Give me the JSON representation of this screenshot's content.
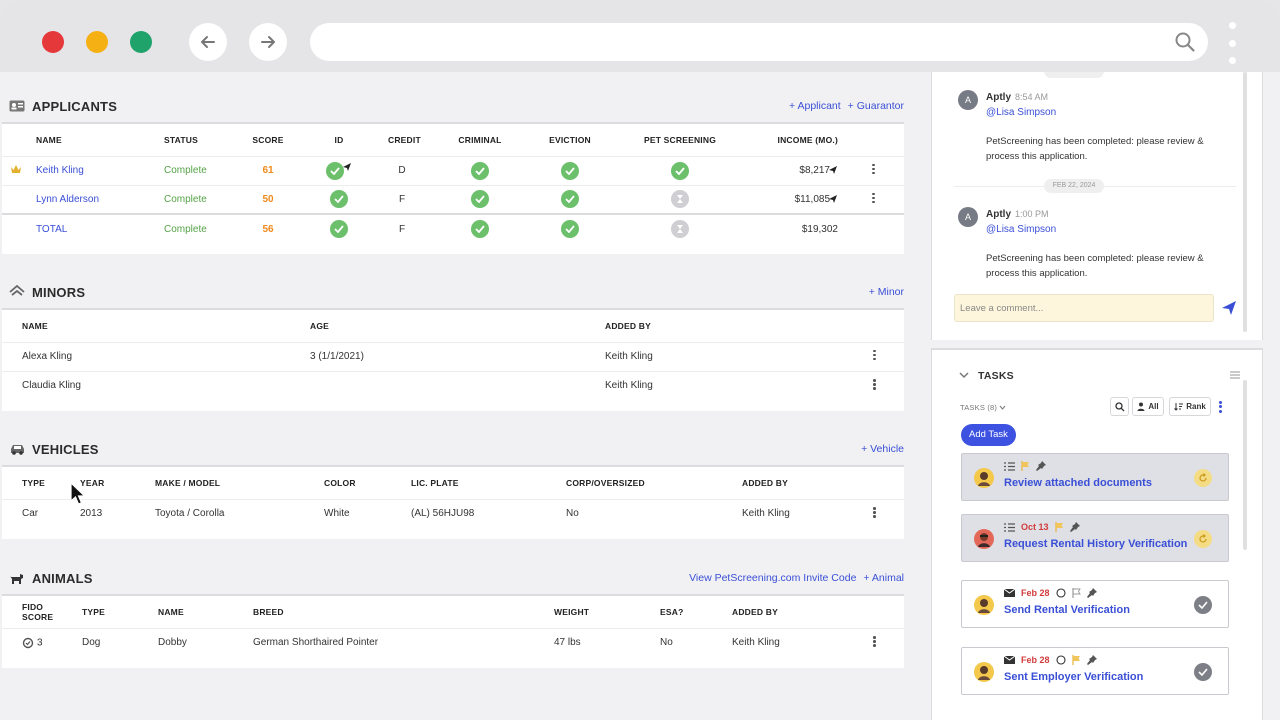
{
  "applicants": {
    "title": "APPLICANTS",
    "actions": [
      "+ Applicant",
      "+ Guarantor"
    ],
    "columns": [
      "NAME",
      "STATUS",
      "SCORE",
      "ID",
      "CREDIT",
      "CRIMINAL",
      "EVICTION",
      "PET SCREENING",
      "INCOME (MO.)"
    ],
    "rows": [
      {
        "name": "Keith Kling",
        "status": "Complete",
        "score": "61",
        "credit": "D",
        "income": "$8,217",
        "primary": true,
        "pet": "complete"
      },
      {
        "name": "Lynn Alderson",
        "status": "Complete",
        "score": "50",
        "credit": "F",
        "income": "$11,085",
        "primary": false,
        "pet": "pending"
      },
      {
        "name": "TOTAL",
        "status": "Complete",
        "score": "56",
        "credit": "F",
        "income": "$19,302",
        "primary": false,
        "pet": "pending"
      }
    ]
  },
  "minors": {
    "title": "MINORS",
    "action": "+ Minor",
    "columns": [
      "NAME",
      "AGE",
      "ADDED BY"
    ],
    "rows": [
      {
        "name": "Alexa Kling",
        "age": "3 (1/1/2021)",
        "added_by": "Keith Kling"
      },
      {
        "name": "Claudia Kling",
        "age": "",
        "added_by": "Keith Kling"
      }
    ]
  },
  "vehicles": {
    "title": "VEHICLES",
    "action": "+ Vehicle",
    "columns": [
      "TYPE",
      "YEAR",
      "MAKE / MODEL",
      "COLOR",
      "LIC. PLATE",
      "CORP/OVERSIZED",
      "ADDED BY"
    ],
    "rows": [
      {
        "type": "Car",
        "year": "2013",
        "make_model": "Toyota / Corolla",
        "color": "White",
        "plate": "(AL) 56HJU98",
        "corp": "No",
        "added_by": "Keith Kling"
      }
    ]
  },
  "animals": {
    "title": "ANIMALS",
    "actions": [
      "View PetScreening.com Invite Code",
      "+ Animal"
    ],
    "columns": [
      "FIDO SCORE",
      "TYPE",
      "NAME",
      "BREED",
      "WEIGHT",
      "ESA?",
      "ADDED BY"
    ],
    "rows": [
      {
        "fido": "3",
        "type": "Dog",
        "name": "Dobby",
        "breed": "German Shorthaired Pointer",
        "weight": "47 lbs",
        "esa": "No",
        "added_by": "Keith Kling"
      }
    ]
  },
  "comments": {
    "date_separator": "FEB 22, 2024",
    "messages": [
      {
        "avatar": "A",
        "author": "Aptly",
        "time": "8:54 AM",
        "mention": "@Lisa Simpson",
        "body": "PetScreening has been completed: please review & process this application."
      },
      {
        "avatar": "A",
        "author": "Aptly",
        "time": "1:00 PM",
        "mention": "@Lisa Simpson",
        "body": "PetScreening has been completed: please review & process this application."
      }
    ],
    "placeholder": "Leave a comment..."
  },
  "tasks": {
    "title": "TASKS",
    "count_label": "TASKS (8)",
    "filter_all": "All",
    "filter_rank": "Rank",
    "add_label": "Add Task",
    "items": [
      {
        "title": "Review attached documents",
        "date": "",
        "highlight": true,
        "status": "retry",
        "avatar_color": "#f3c84b"
      },
      {
        "title": "Request Rental History Verification",
        "date": "Oct 13",
        "highlight": true,
        "status": "retry",
        "avatar_color": "#e4685a"
      },
      {
        "title": "Send Rental Verification",
        "date": "Feb 28",
        "highlight": false,
        "status": "done",
        "avatar_color": "#f3c84b"
      },
      {
        "title": "Sent Employer Verification",
        "date": "Feb 28",
        "highlight": false,
        "status": "done",
        "avatar_color": "#f3c84b"
      }
    ]
  },
  "colors": {
    "accent": "#3a4fd6",
    "success": "#6cc06b",
    "score": "#f08a1c",
    "overdue": "#d23b3b"
  }
}
